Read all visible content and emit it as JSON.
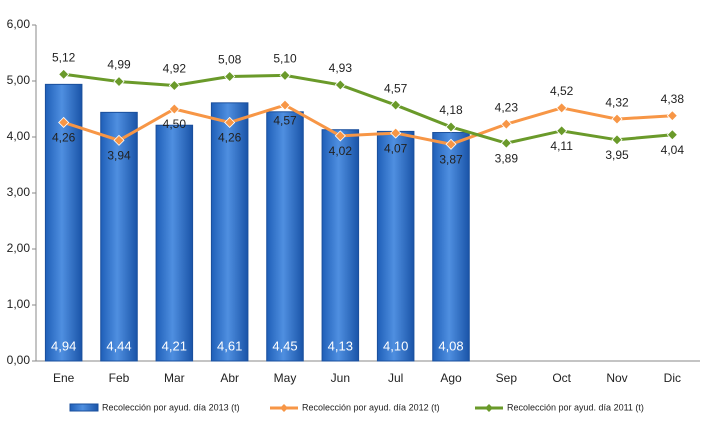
{
  "chart_data": {
    "type": "bar_line",
    "categories": [
      "Ene",
      "Feb",
      "Mar",
      "Abr",
      "May",
      "Jun",
      "Jul",
      "Ago",
      "Sep",
      "Oct",
      "Nov",
      "Dic"
    ],
    "series": [
      {
        "name": "Recolección por ayud. día 2013 (t)",
        "type": "bar",
        "color": "#2f6fc8",
        "values": [
          4.94,
          4.44,
          4.21,
          4.61,
          4.45,
          4.13,
          4.1,
          4.08,
          null,
          null,
          null,
          null
        ],
        "value_labels": [
          "4,94",
          "4,44",
          "4,21",
          "4,61",
          "4,45",
          "4,13",
          "4,10",
          "4,08",
          null,
          null,
          null,
          null
        ]
      },
      {
        "name": "Recolección por ayud. día 2012 (t)",
        "type": "line",
        "color": "#f79646",
        "values": [
          4.26,
          3.94,
          4.5,
          4.26,
          4.57,
          4.02,
          4.07,
          3.87,
          4.23,
          4.52,
          4.32,
          4.38
        ],
        "value_labels": [
          "4,26",
          "3,94",
          "4,50",
          "4,26",
          "4,57",
          "4,02",
          "4,07",
          "3,87",
          "4,23",
          "4,52",
          "4,32",
          "4,38"
        ]
      },
      {
        "name": "Recolección por ayud. día 2011 (t)",
        "type": "line",
        "color": "#6a9a2a",
        "values": [
          5.12,
          4.99,
          4.92,
          5.08,
          5.1,
          4.93,
          4.57,
          4.18,
          3.89,
          4.11,
          3.95,
          4.04
        ],
        "value_labels": [
          "5,12",
          "4,99",
          "4,92",
          "5,08",
          "5,10",
          "4,93",
          "4,57",
          "4,18",
          "3,89",
          "4,11",
          "3,95",
          "4,04"
        ]
      }
    ],
    "ylim": [
      0,
      6
    ],
    "yticks": [
      {
        "value": 0,
        "label": "0,00"
      },
      {
        "value": 1,
        "label": "1,00"
      },
      {
        "value": 2,
        "label": "2,00"
      },
      {
        "value": 3,
        "label": "3,00"
      },
      {
        "value": 4,
        "label": "4,00"
      },
      {
        "value": 5,
        "label": "5,00"
      },
      {
        "value": 6,
        "label": "6,00"
      }
    ],
    "grid": false,
    "legend": "bottom"
  }
}
